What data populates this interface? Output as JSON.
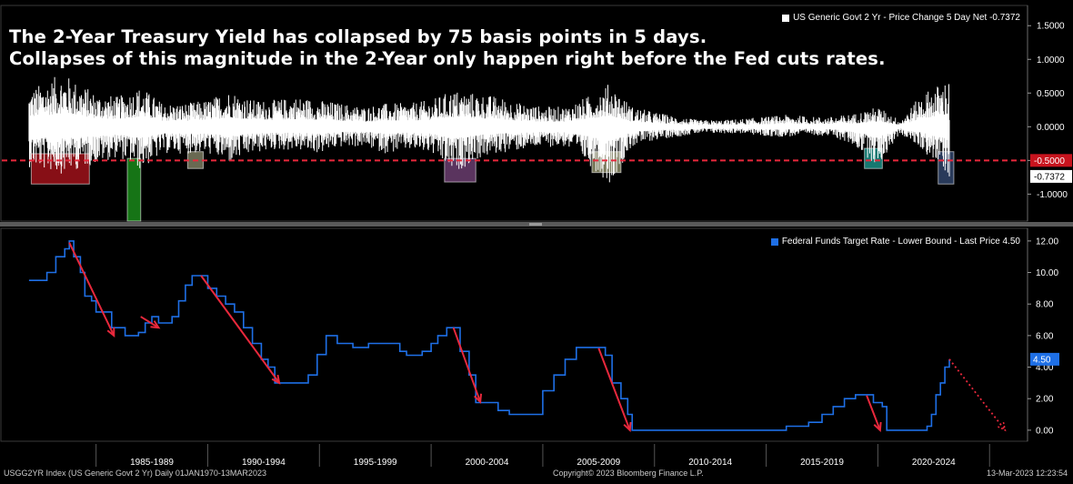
{
  "headline": {
    "line1": "The 2-Year Treasury Yield has collapsed by 75 basis points in 5 days.",
    "line2": "Collapses of this magnitude in the 2-Year only happen right before the Fed cuts rates."
  },
  "footer": {
    "left": "USGG2YR Index (US Generic Govt 2 Yr)  Daily 01JAN1970-13MAR2023",
    "center": "Copyright© 2023 Bloomberg Finance L.P.",
    "right": "13-Mar-2023 12:23:54"
  },
  "colors": {
    "background": "#000000",
    "top_series": "#ffffff",
    "bottom_series": "#1e6fe6",
    "threshold": "#e8283c",
    "arrow": "#e8283c",
    "axis_label_bg": "#1e6fe6"
  },
  "chart_data": [
    {
      "type": "bar",
      "legend": "US Generic Govt 2 Yr - Price Change 5 Day Net  -0.7372",
      "legend_placement": "top-right",
      "ylim": [
        -1.4,
        1.8
      ],
      "yticks": [
        "1.5000",
        "1.0000",
        "0.5000",
        "0.0000",
        "-0.5000",
        "-1.0000"
      ],
      "tick_values": [
        1.5,
        1.0,
        0.5,
        0.0,
        -0.5,
        -1.0
      ],
      "threshold": {
        "value": -0.5,
        "label": "-0.5000"
      },
      "last_value": {
        "value": -0.7372,
        "label": "-0.7372"
      },
      "envelope": {
        "x": [
          1982.0,
          1983.5,
          1985,
          1986,
          1987,
          1988,
          1989,
          1990,
          1991,
          1992,
          1993,
          1994,
          1995,
          1996,
          1997,
          1998,
          1999,
          2000,
          2001,
          2002,
          2003,
          2004,
          2005,
          2006,
          2007,
          2008,
          2009,
          2010,
          2011,
          2012,
          2013,
          2014,
          2015,
          2016,
          2017,
          2018,
          2019,
          2020,
          2021,
          2022,
          2023.2
        ],
        "max": [
          0.55,
          0.8,
          0.5,
          0.45,
          0.6,
          0.35,
          0.35,
          0.4,
          0.55,
          0.4,
          0.4,
          0.45,
          0.4,
          0.35,
          0.3,
          0.35,
          0.35,
          0.4,
          0.55,
          0.5,
          0.45,
          0.35,
          0.3,
          0.3,
          0.45,
          0.65,
          0.3,
          0.22,
          0.15,
          0.1,
          0.1,
          0.12,
          0.15,
          0.18,
          0.15,
          0.15,
          0.2,
          0.3,
          0.1,
          0.5,
          0.72
        ],
        "min": [
          -0.6,
          -0.7,
          -0.55,
          -0.45,
          -0.65,
          -0.4,
          -0.4,
          -0.4,
          -0.55,
          -0.4,
          -0.35,
          -0.35,
          -0.4,
          -0.3,
          -0.3,
          -0.4,
          -0.35,
          -0.4,
          -0.7,
          -0.5,
          -0.4,
          -0.35,
          -0.3,
          -0.3,
          -0.55,
          -0.85,
          -0.3,
          -0.2,
          -0.15,
          -0.1,
          -0.1,
          -0.1,
          -0.15,
          -0.15,
          -0.12,
          -0.15,
          -0.3,
          -0.6,
          -0.1,
          -0.35,
          -0.7372
        ]
      },
      "highlights": [
        {
          "x0": 1982.1,
          "x1": 1984.7,
          "y0": -0.85,
          "y1": -0.4,
          "color": "#b4141e"
        },
        {
          "x0": 1986.4,
          "x1": 1987.0,
          "y0": -1.4,
          "y1": -0.47,
          "color": "#1e9b1e"
        },
        {
          "x0": 1989.1,
          "x1": 1989.8,
          "y0": -0.62,
          "y1": -0.37,
          "color": "#8c8c6e"
        },
        {
          "x0": 2000.6,
          "x1": 2002.0,
          "y0": -0.82,
          "y1": -0.47,
          "color": "#78467e"
        },
        {
          "x0": 2007.2,
          "x1": 2008.5,
          "y0": -0.68,
          "y1": -0.37,
          "color": "#a0a078"
        },
        {
          "x0": 2019.4,
          "x1": 2020.2,
          "y0": -0.62,
          "y1": -0.32,
          "color": "#1ea096"
        },
        {
          "x0": 2022.7,
          "x1": 2023.4,
          "y0": -0.85,
          "y1": -0.37,
          "color": "#374e78"
        }
      ]
    },
    {
      "type": "line",
      "legend": "Federal Funds Target Rate - Lower Bound - Last Price 4.50",
      "legend_placement": "top-right",
      "ylim": [
        -0.7,
        12.8
      ],
      "yticks": [
        "12.00",
        "10.00",
        "8.00",
        "6.00",
        "4.00",
        "2.00",
        "0.00"
      ],
      "tick_values": [
        12,
        10,
        8,
        6,
        4,
        2,
        0
      ],
      "last_value": {
        "value": 4.5,
        "label": "4.50"
      },
      "x": [
        1982.0,
        1982.3,
        1982.8,
        1983.2,
        1983.6,
        1983.8,
        1984.0,
        1984.3,
        1984.5,
        1984.8,
        1985.0,
        1985.3,
        1985.7,
        1986.0,
        1986.3,
        1986.6,
        1986.9,
        1987.2,
        1987.5,
        1987.8,
        1988.1,
        1988.4,
        1988.7,
        1989.0,
        1989.3,
        1989.7,
        1990.0,
        1990.4,
        1990.8,
        1991.2,
        1991.6,
        1992.0,
        1992.4,
        1992.7,
        1993.0,
        1994.0,
        1994.5,
        1994.9,
        1995.3,
        1995.8,
        1996.5,
        1997.2,
        1998.0,
        1998.6,
        1998.9,
        1999.2,
        1999.6,
        2000.0,
        2000.3,
        2000.7,
        2001.0,
        2001.3,
        2001.7,
        2002.0,
        2002.6,
        2003.0,
        2003.5,
        2004.5,
        2005.0,
        2005.5,
        2006.0,
        2006.5,
        2007.5,
        2007.8,
        2008.1,
        2008.5,
        2008.8,
        2009.0,
        2012.0,
        2015.0,
        2015.9,
        2016.9,
        2017.5,
        2018.0,
        2018.5,
        2019.0,
        2019.5,
        2019.8,
        2020.2,
        2020.4,
        2021.0,
        2022.0,
        2022.2,
        2022.4,
        2022.6,
        2022.8,
        2023.0,
        2023.2
      ],
      "y": [
        9.5,
        9.5,
        10.0,
        11.0,
        11.5,
        12.0,
        11.0,
        10.0,
        8.5,
        8.2,
        7.5,
        7.5,
        6.5,
        6.5,
        6.0,
        6.0,
        6.2,
        6.8,
        7.2,
        6.8,
        6.8,
        7.2,
        8.2,
        9.2,
        9.8,
        9.8,
        9.0,
        8.5,
        8.0,
        7.5,
        6.5,
        5.5,
        4.5,
        4.0,
        3.0,
        3.0,
        3.5,
        4.8,
        6.0,
        5.5,
        5.25,
        5.5,
        5.5,
        5.0,
        4.75,
        4.75,
        5.0,
        5.5,
        6.0,
        6.5,
        6.5,
        5.0,
        3.5,
        1.75,
        1.75,
        1.25,
        1.0,
        1.0,
        2.5,
        3.5,
        4.5,
        5.25,
        5.25,
        4.75,
        3.0,
        2.0,
        1.0,
        0.0,
        0.0,
        0.0,
        0.25,
        0.5,
        1.0,
        1.5,
        2.0,
        2.25,
        2.25,
        1.75,
        1.5,
        0.0,
        0.0,
        0.0,
        0.25,
        1.0,
        2.25,
        3.0,
        4.0,
        4.5
      ],
      "arrows": [
        {
          "from": [
            1983.8,
            11.9
          ],
          "to": [
            1985.8,
            6.0
          ],
          "style": "solid"
        },
        {
          "from": [
            1987.0,
            7.2
          ],
          "to": [
            1987.8,
            6.5
          ],
          "style": "solid"
        },
        {
          "from": [
            1989.7,
            9.8
          ],
          "to": [
            1993.2,
            3.0
          ],
          "style": "solid"
        },
        {
          "from": [
            2001.0,
            6.5
          ],
          "to": [
            2002.2,
            1.8
          ],
          "style": "solid"
        },
        {
          "from": [
            2007.5,
            5.2
          ],
          "to": [
            2008.9,
            0.0
          ],
          "style": "solid"
        },
        {
          "from": [
            2019.5,
            2.2
          ],
          "to": [
            2020.1,
            0.0
          ],
          "style": "solid"
        },
        {
          "from": [
            2023.2,
            4.5
          ],
          "to": [
            2025.7,
            0.0
          ],
          "style": "dotted"
        }
      ]
    }
  ],
  "x_axis": {
    "labels": [
      "1985-1989",
      "1990-1994",
      "1995-1999",
      "2000-2004",
      "2005-2009",
      "2010-2014",
      "2015-2019",
      "2020-2024"
    ],
    "label_centers": [
      1987.5,
      1992.5,
      1997.5,
      2002.5,
      2007.5,
      2012.5,
      2017.5,
      2022.5
    ],
    "separators": [
      1985,
      1990,
      1995,
      2000,
      2005,
      2010,
      2015,
      2020,
      2025
    ]
  }
}
